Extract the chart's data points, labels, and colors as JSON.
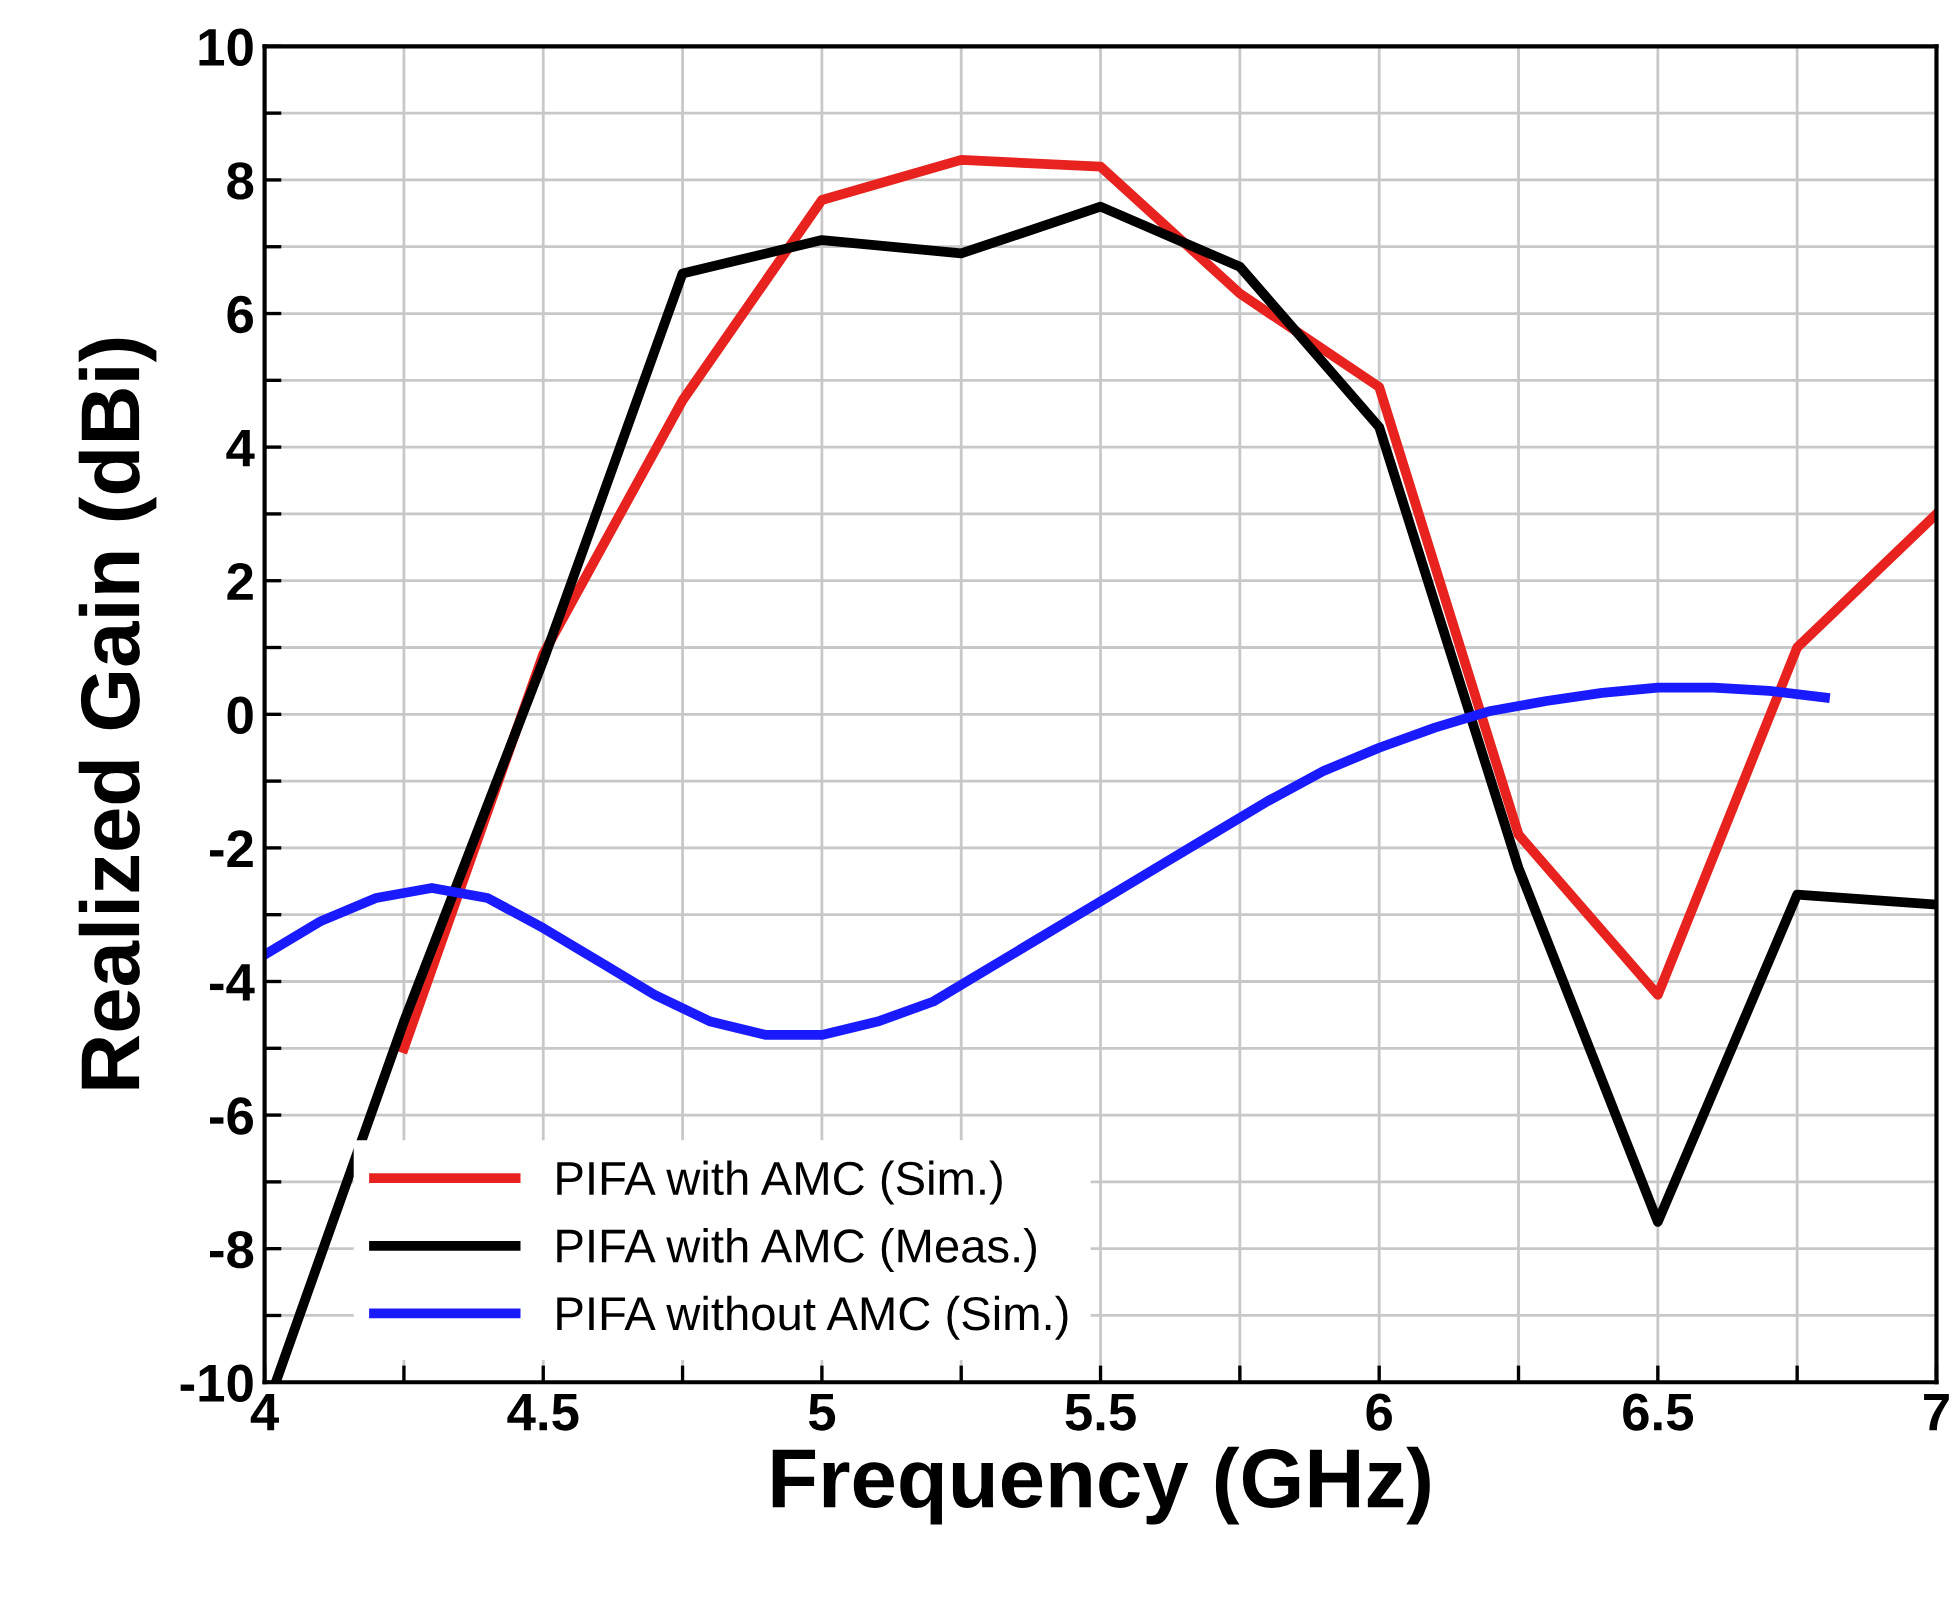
{
  "chart_data": {
    "type": "line",
    "xlabel": "Frequency (GHz)",
    "ylabel": "Realized Gain (dBi)",
    "xlim": [
      4,
      7
    ],
    "ylim": [
      -10,
      10
    ],
    "xticks": [
      4,
      {
        "value": 4.25,
        "label": null
      },
      4.5,
      {
        "value": 4.75,
        "label": null
      },
      5,
      {
        "value": 5.25,
        "label": null
      },
      5.5,
      {
        "value": 5.75,
        "label": null
      },
      6,
      {
        "value": 6.25,
        "label": null
      },
      6.5,
      {
        "value": 6.75,
        "label": null
      },
      7
    ],
    "yticks": [
      -10,
      {
        "value": -9,
        "label": null
      },
      -8,
      {
        "value": -7,
        "label": null
      },
      -6,
      {
        "value": -5,
        "label": null
      },
      -4,
      {
        "value": -3,
        "label": null
      },
      -2,
      {
        "value": -1,
        "label": null
      },
      0,
      {
        "value": 1,
        "label": null
      },
      2,
      {
        "value": 3,
        "label": null
      },
      4,
      {
        "value": 5,
        "label": null
      },
      6,
      {
        "value": 7,
        "label": null
      },
      8,
      {
        "value": 9,
        "label": null
      },
      10
    ],
    "grid": true,
    "legend": "bottom left",
    "marker": "none",
    "line_style": "solid",
    "series": [
      {
        "name": "PIFA with AMC (Sim.)",
        "color": "#e8231f",
        "x": [
          4.25,
          4.5,
          4.75,
          5,
          5.25,
          5.5,
          5.75,
          6,
          6.25,
          6.5,
          6.75,
          7
        ],
        "values": [
          -5,
          0.9,
          4.7,
          7.7,
          8.3,
          8.2,
          6.3,
          4.9,
          -1.8,
          -4.2,
          1.0,
          3.0
        ]
      },
      {
        "name": "PIFA with AMC (Meas.)",
        "color": "#000000",
        "x": [
          4.02,
          4.25,
          4.5,
          4.75,
          5,
          5.25,
          5.5,
          5.75,
          6,
          6.25,
          6.5,
          6.75,
          7
        ],
        "values": [
          -10,
          -4.6,
          0.8,
          6.6,
          7.1,
          6.9,
          7.6,
          6.7,
          4.3,
          -2.3,
          -7.6,
          -2.7,
          -2.85
        ]
      },
      {
        "name": "PIFA without AMC (Sim.)",
        "color": "#1a1aff",
        "x": [
          4.0,
          4.1,
          4.2,
          4.3,
          4.4,
          4.5,
          4.6,
          4.7,
          4.8,
          4.9,
          5.0,
          5.1,
          5.2,
          5.3,
          5.4,
          5.5,
          5.6,
          5.7,
          5.8,
          5.9,
          6.0,
          6.1,
          6.2,
          6.3,
          6.4,
          6.5,
          6.6,
          6.7,
          6.8
        ],
        "values": [
          -3.6,
          -3.1,
          -2.75,
          -2.6,
          -2.75,
          -3.2,
          -3.7,
          -4.2,
          -4.6,
          -4.8,
          -4.8,
          -4.6,
          -4.3,
          -3.8,
          -3.3,
          -2.8,
          -2.3,
          -1.8,
          -1.3,
          -0.85,
          -0.5,
          -0.2,
          0.05,
          0.2,
          0.32,
          0.4,
          0.4,
          0.35,
          0.25
        ]
      }
    ]
  }
}
